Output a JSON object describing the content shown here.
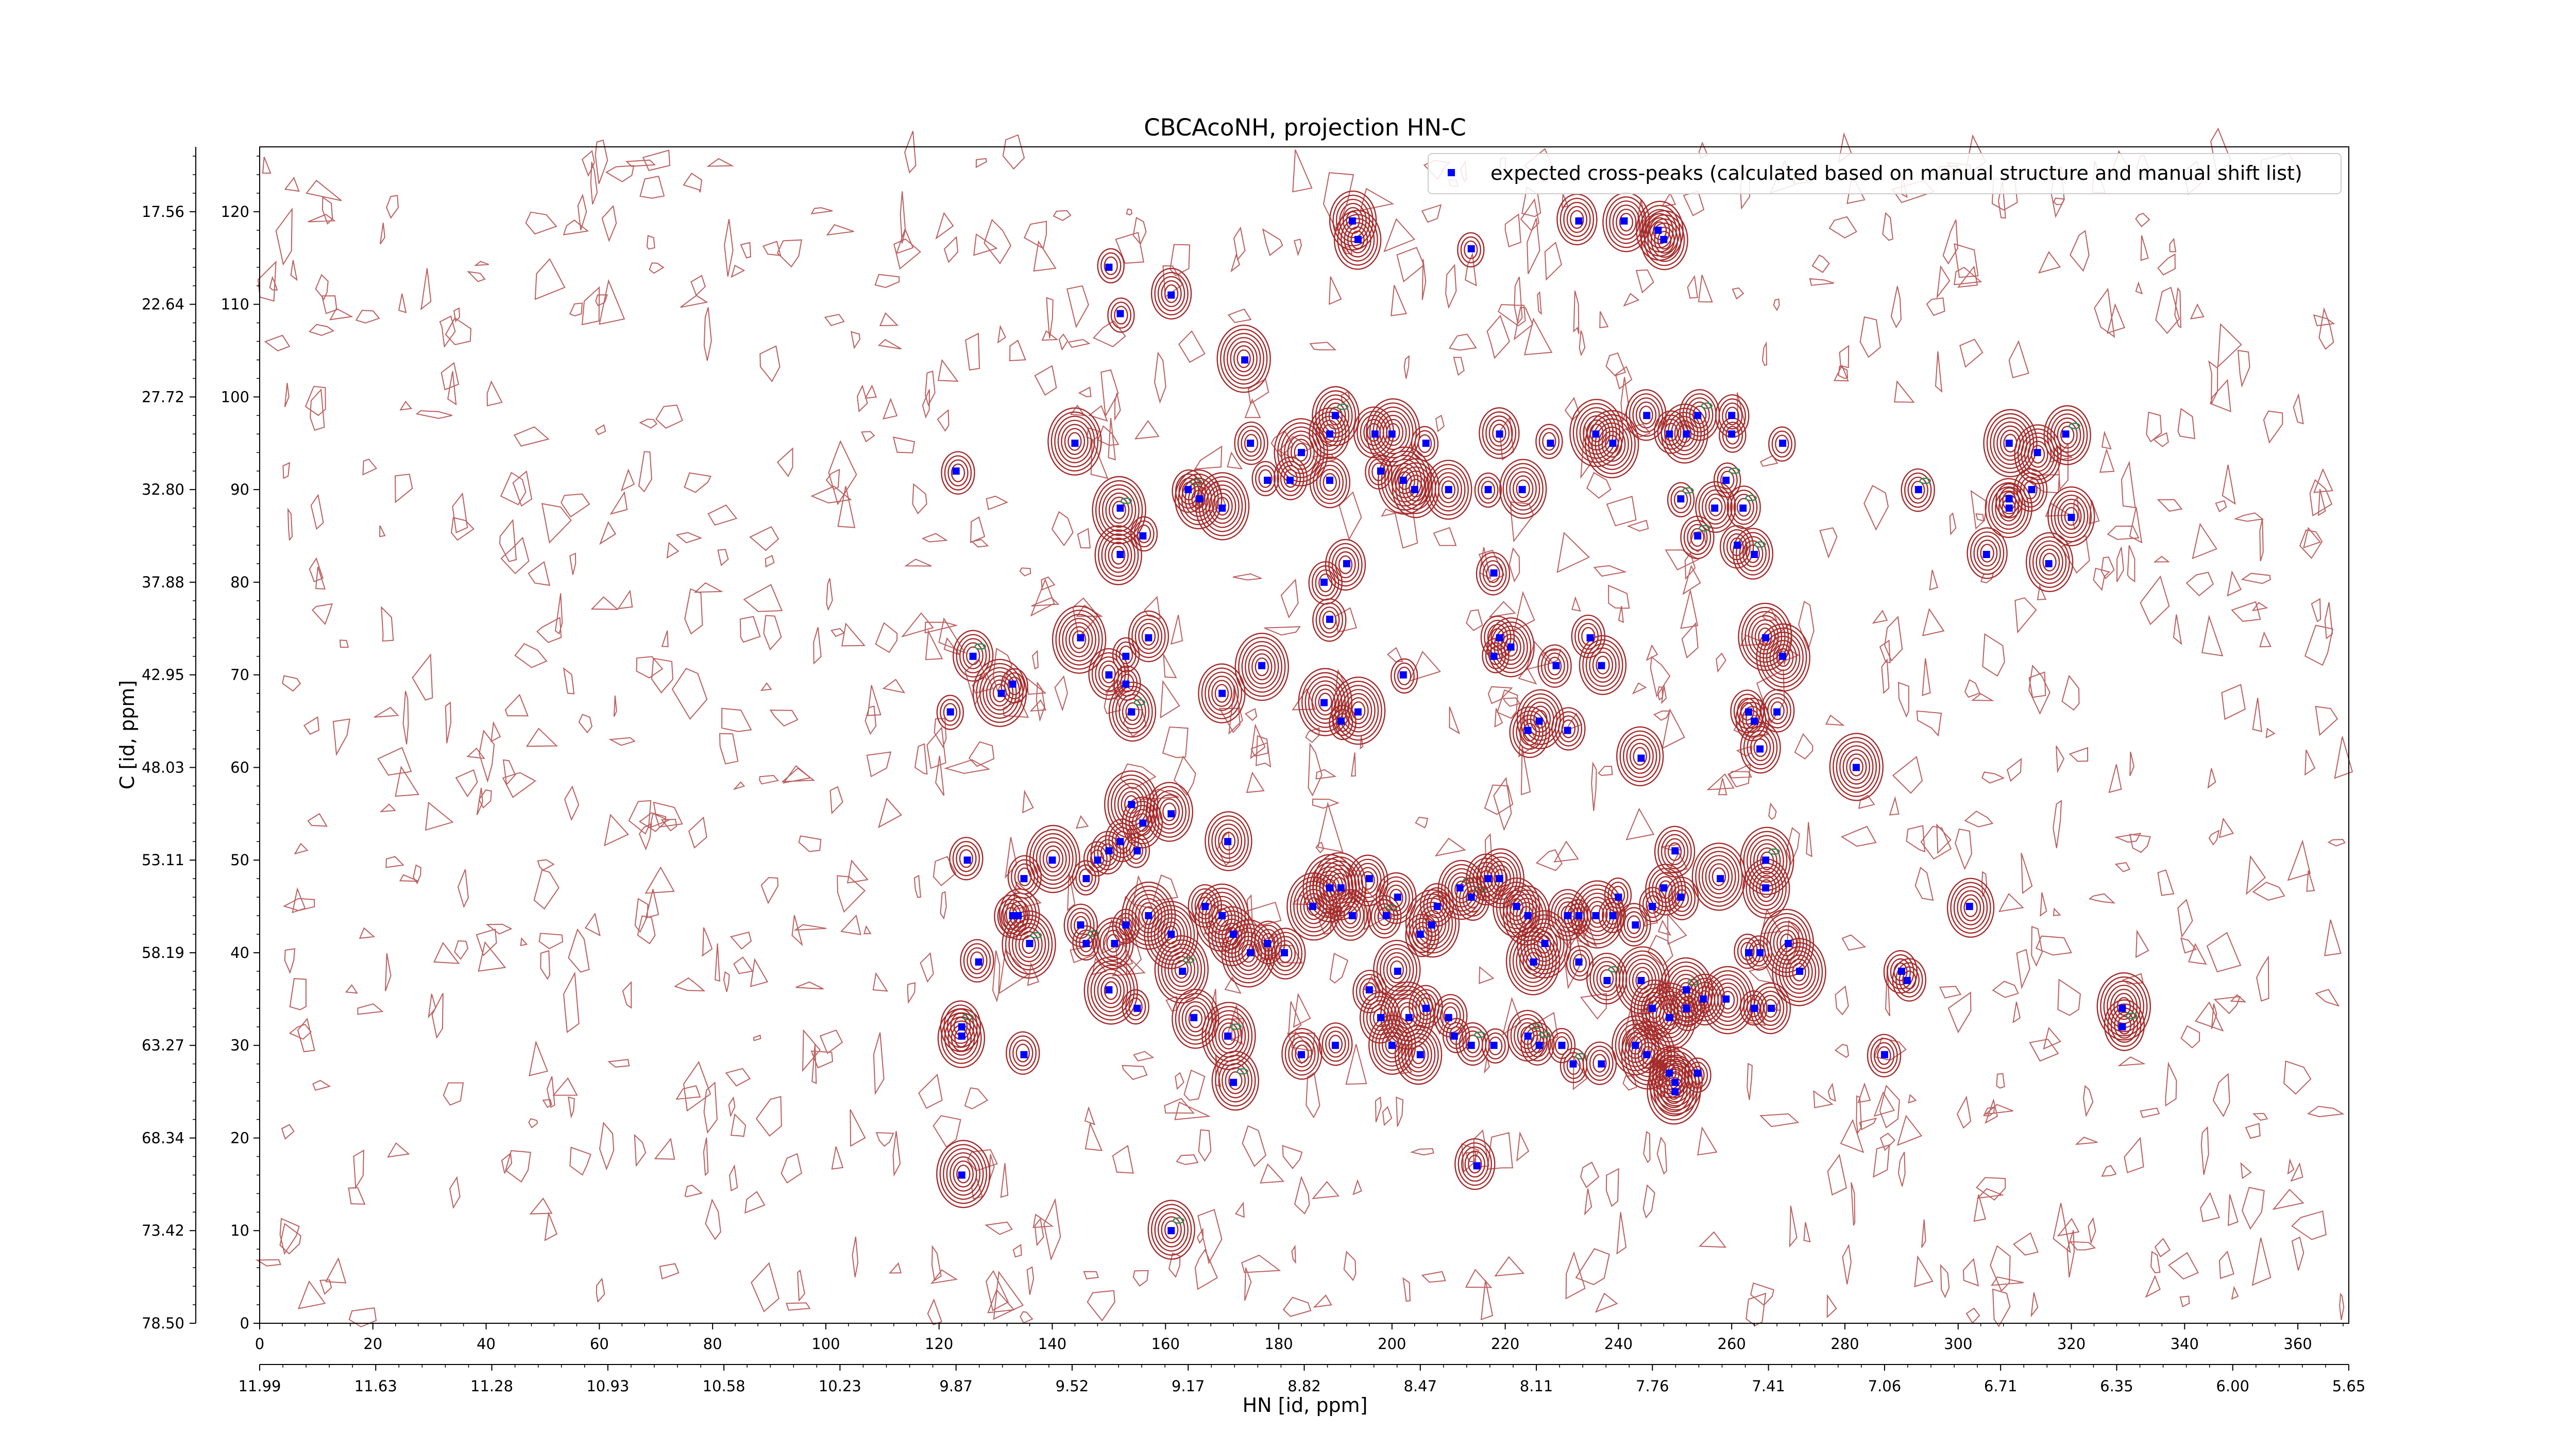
{
  "chart_data": {
    "type": "scatter",
    "title": "CBCAcoNH, projection HN-C",
    "xlabel": "HN [id, ppm]",
    "ylabel": "C [id, ppm]",
    "xlim": [
      0,
      369
    ],
    "ylim": [
      0,
      127
    ],
    "x_ticks": [
      0,
      20,
      40,
      60,
      80,
      100,
      120,
      140,
      160,
      180,
      200,
      220,
      240,
      260,
      280,
      300,
      320,
      340,
      360
    ],
    "y_ticks": [
      0,
      10,
      20,
      30,
      40,
      50,
      60,
      70,
      80,
      90,
      100,
      110,
      120
    ],
    "x2_ticks": [
      {
        "x": 0,
        "label": "11.99"
      },
      {
        "x": 20.5,
        "label": "11.63"
      },
      {
        "x": 41,
        "label": "11.28"
      },
      {
        "x": 61.5,
        "label": "10.93"
      },
      {
        "x": 82,
        "label": "10.58"
      },
      {
        "x": 102.5,
        "label": "10.23"
      },
      {
        "x": 123,
        "label": "9.87"
      },
      {
        "x": 143.5,
        "label": "9.52"
      },
      {
        "x": 164,
        "label": "9.17"
      },
      {
        "x": 184.5,
        "label": "8.82"
      },
      {
        "x": 205,
        "label": "8.47"
      },
      {
        "x": 225.5,
        "label": "8.11"
      },
      {
        "x": 246,
        "label": "7.76"
      },
      {
        "x": 266.5,
        "label": "7.41"
      },
      {
        "x": 287,
        "label": "7.06"
      },
      {
        "x": 307.5,
        "label": "6.71"
      },
      {
        "x": 328,
        "label": "6.35"
      },
      {
        "x": 348.5,
        "label": "6.00"
      },
      {
        "x": 369,
        "label": "5.65"
      }
    ],
    "y2_ticks": [
      {
        "y": 0,
        "label": "78.50"
      },
      {
        "y": 10,
        "label": "73.42"
      },
      {
        "y": 20,
        "label": "68.34"
      },
      {
        "y": 30,
        "label": "63.27"
      },
      {
        "y": 40,
        "label": "58.19"
      },
      {
        "y": 50,
        "label": "53.11"
      },
      {
        "y": 60,
        "label": "48.03"
      },
      {
        "y": 70,
        "label": "42.95"
      },
      {
        "y": 80,
        "label": "37.88"
      },
      {
        "y": 90,
        "label": "32.80"
      },
      {
        "y": 100,
        "label": "27.72"
      },
      {
        "y": 110,
        "label": "22.64"
      },
      {
        "y": 120,
        "label": "17.56"
      }
    ],
    "legend": {
      "placement": "top-right",
      "entries": [
        "expected cross-peaks (calculated based on manual structure and manual shift list)"
      ]
    },
    "colors": {
      "peaks": "#0000ff",
      "contour": "#a52a2a",
      "contour_neg": "#2e8b57"
    },
    "grid": false,
    "series": [
      {
        "name": "expected cross-peaks (calculated based on manual structure and manual shift list)",
        "points": [
          [
            193,
            119
          ],
          [
            194,
            117
          ],
          [
            214,
            116
          ],
          [
            233,
            119
          ],
          [
            241,
            119
          ],
          [
            247,
            118
          ],
          [
            248,
            117
          ],
          [
            150,
            114
          ],
          [
            152,
            109
          ],
          [
            161,
            111
          ],
          [
            174,
            104
          ],
          [
            144,
            95
          ],
          [
            175,
            95
          ],
          [
            184,
            94
          ],
          [
            189,
            96
          ],
          [
            190,
            98
          ],
          [
            197,
            96
          ],
          [
            200,
            96
          ],
          [
            206,
            95
          ],
          [
            219,
            96
          ],
          [
            228,
            95
          ],
          [
            236,
            96
          ],
          [
            239,
            95
          ],
          [
            245,
            98
          ],
          [
            249,
            96
          ],
          [
            252,
            96
          ],
          [
            254,
            98
          ],
          [
            260,
            96
          ],
          [
            260,
            98
          ],
          [
            269,
            95
          ],
          [
            309,
            95
          ],
          [
            314,
            94
          ],
          [
            319,
            96
          ],
          [
            152,
            88
          ],
          [
            164,
            90
          ],
          [
            166,
            89
          ],
          [
            170,
            88
          ],
          [
            178,
            91
          ],
          [
            182,
            91
          ],
          [
            189,
            91
          ],
          [
            198,
            92
          ],
          [
            202,
            91
          ],
          [
            204,
            90
          ],
          [
            210,
            90
          ],
          [
            217,
            90
          ],
          [
            223,
            90
          ],
          [
            251,
            89
          ],
          [
            257,
            88
          ],
          [
            259,
            91
          ],
          [
            262,
            88
          ],
          [
            152,
            83
          ],
          [
            156,
            85
          ],
          [
            254,
            85
          ],
          [
            261,
            84
          ],
          [
            264,
            83
          ],
          [
            188,
            80
          ],
          [
            192,
            82
          ],
          [
            189,
            76
          ],
          [
            218,
            81
          ],
          [
            123,
            92
          ],
          [
            126,
            72
          ],
          [
            131,
            68
          ],
          [
            133,
            69
          ],
          [
            122,
            66
          ],
          [
            145,
            74
          ],
          [
            153,
            72
          ],
          [
            157,
            74
          ],
          [
            150,
            70
          ],
          [
            153,
            69
          ],
          [
            154,
            66
          ],
          [
            170,
            68
          ],
          [
            177,
            71
          ],
          [
            188,
            67
          ],
          [
            191,
            65
          ],
          [
            194,
            66
          ],
          [
            202,
            70
          ],
          [
            218,
            72
          ],
          [
            219,
            74
          ],
          [
            221,
            73
          ],
          [
            229,
            71
          ],
          [
            235,
            74
          ],
          [
            237,
            71
          ],
          [
            224,
            64
          ],
          [
            226,
            65
          ],
          [
            231,
            64
          ],
          [
            244,
            61
          ],
          [
            263,
            66
          ],
          [
            264,
            65
          ],
          [
            265,
            62
          ],
          [
            268,
            66
          ],
          [
            266,
            74
          ],
          [
            269,
            72
          ],
          [
            282,
            60
          ],
          [
            293,
            90
          ],
          [
            309,
            89
          ],
          [
            305,
            83
          ],
          [
            309,
            88
          ],
          [
            313,
            90
          ],
          [
            316,
            82
          ],
          [
            320,
            87
          ],
          [
            154,
            56
          ],
          [
            156,
            54
          ],
          [
            161,
            55
          ],
          [
            171,
            52
          ],
          [
            150,
            51
          ],
          [
            152,
            52
          ],
          [
            155,
            51
          ],
          [
            146,
            48
          ],
          [
            148,
            50
          ],
          [
            140,
            50
          ],
          [
            135,
            48
          ],
          [
            125,
            50
          ],
          [
            133,
            44
          ],
          [
            134,
            44
          ],
          [
            127,
            39
          ],
          [
            136,
            41
          ],
          [
            145,
            43
          ],
          [
            146,
            41
          ],
          [
            151,
            41
          ],
          [
            153,
            43
          ],
          [
            157,
            44
          ],
          [
            161,
            42
          ],
          [
            163,
            38
          ],
          [
            167,
            45
          ],
          [
            170,
            44
          ],
          [
            172,
            42
          ],
          [
            175,
            40
          ],
          [
            178,
            41
          ],
          [
            181,
            40
          ],
          [
            186,
            45
          ],
          [
            189,
            47
          ],
          [
            191,
            47
          ],
          [
            193,
            44
          ],
          [
            196,
            48
          ],
          [
            199,
            44
          ],
          [
            201,
            46
          ],
          [
            205,
            42
          ],
          [
            207,
            43
          ],
          [
            208,
            45
          ],
          [
            212,
            47
          ],
          [
            214,
            46
          ],
          [
            217,
            48
          ],
          [
            219,
            48
          ],
          [
            222,
            45
          ],
          [
            224,
            44
          ],
          [
            225,
            39
          ],
          [
            227,
            41
          ],
          [
            231,
            44
          ],
          [
            233,
            44
          ],
          [
            236,
            44
          ],
          [
            239,
            44
          ],
          [
            240,
            46
          ],
          [
            243,
            43
          ],
          [
            246,
            45
          ],
          [
            248,
            47
          ],
          [
            250,
            51
          ],
          [
            251,
            46
          ],
          [
            258,
            48
          ],
          [
            266,
            50
          ],
          [
            266,
            47
          ],
          [
            263,
            40
          ],
          [
            265,
            40
          ],
          [
            270,
            41
          ],
          [
            272,
            38
          ],
          [
            302,
            45
          ],
          [
            291,
            37
          ],
          [
            233,
            39
          ],
          [
            238,
            37
          ],
          [
            244,
            37
          ],
          [
            246,
            34
          ],
          [
            249,
            33
          ],
          [
            252,
            36
          ],
          [
            252,
            34
          ],
          [
            255,
            35
          ],
          [
            259,
            35
          ],
          [
            264,
            34
          ],
          [
            267,
            34
          ],
          [
            201,
            38
          ],
          [
            196,
            36
          ],
          [
            198,
            33
          ],
          [
            203,
            33
          ],
          [
            206,
            34
          ],
          [
            210,
            33
          ],
          [
            211,
            31
          ],
          [
            214,
            30
          ],
          [
            218,
            30
          ],
          [
            224,
            31
          ],
          [
            226,
            30
          ],
          [
            230,
            30
          ],
          [
            232,
            28
          ],
          [
            237,
            28
          ],
          [
            243,
            30
          ],
          [
            245,
            29
          ],
          [
            249,
            27
          ],
          [
            250,
            25
          ],
          [
            254,
            27
          ],
          [
            124,
            32
          ],
          [
            124,
            31
          ],
          [
            135,
            29
          ],
          [
            150,
            36
          ],
          [
            155,
            34
          ],
          [
            165,
            33
          ],
          [
            171,
            31
          ],
          [
            184,
            29
          ],
          [
            190,
            30
          ],
          [
            200,
            30
          ],
          [
            205,
            29
          ],
          [
            172,
            26
          ],
          [
            250,
            26
          ],
          [
            287,
            29
          ],
          [
            290,
            38
          ],
          [
            329,
            34
          ],
          [
            329,
            32
          ],
          [
            124,
            16
          ],
          [
            161,
            10
          ],
          [
            215,
            17
          ]
        ]
      }
    ]
  }
}
